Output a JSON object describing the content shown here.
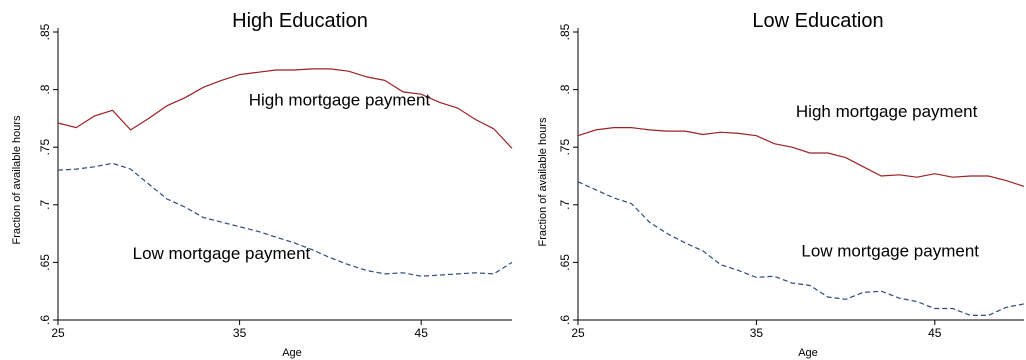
{
  "chart_data": [
    {
      "type": "line",
      "title": "High Education",
      "xlabel": "Age",
      "ylabel": "Fraction of available hours",
      "xlim": [
        25,
        50
      ],
      "ylim": [
        0.6,
        0.85
      ],
      "xticks": [
        "25",
        "35",
        "45"
      ],
      "yticks": [
        ".6",
        ".65",
        ".7",
        ".75",
        ".8",
        ".85"
      ],
      "grid": false,
      "series": [
        {
          "name": "High mortgage payment",
          "color": "#9b2226",
          "dash": "solid",
          "x": [
            25,
            26,
            27,
            28,
            29,
            30,
            31,
            32,
            33,
            34,
            35,
            36,
            37,
            38,
            39,
            40,
            41,
            42,
            43,
            44,
            45,
            46,
            47,
            48,
            49,
            50
          ],
          "values": [
            0.771,
            0.767,
            0.777,
            0.782,
            0.765,
            0.775,
            0.786,
            0.793,
            0.802,
            0.808,
            0.813,
            0.815,
            0.817,
            0.817,
            0.818,
            0.818,
            0.816,
            0.811,
            0.808,
            0.798,
            0.796,
            0.789,
            0.784,
            0.774,
            0.766,
            0.749
          ]
        },
        {
          "name": "Low mortgage payment",
          "color": "#2b4c7e",
          "dash": "dashed",
          "x": [
            25,
            26,
            27,
            28,
            29,
            30,
            31,
            32,
            33,
            34,
            35,
            36,
            37,
            38,
            39,
            40,
            41,
            42,
            43,
            44,
            45,
            46,
            47,
            48,
            49,
            50
          ],
          "values": [
            0.73,
            0.731,
            0.733,
            0.736,
            0.731,
            0.718,
            0.705,
            0.698,
            0.689,
            0.685,
            0.681,
            0.677,
            0.672,
            0.667,
            0.661,
            0.654,
            0.648,
            0.643,
            0.64,
            0.641,
            0.638,
            0.639,
            0.64,
            0.641,
            0.64,
            0.65
          ]
        }
      ],
      "annotations": [
        {
          "text": "High mortgage payment",
          "x": 40.5,
          "y": 0.786
        },
        {
          "text": "Low mortgage payment",
          "x": 34,
          "y": 0.653
        }
      ]
    },
    {
      "type": "line",
      "title": "Low Education",
      "xlabel": "Age",
      "ylabel": "Fraction of available hours",
      "xlim": [
        25,
        50
      ],
      "ylim": [
        0.6,
        0.85
      ],
      "xticks": [
        "25",
        "35",
        "45"
      ],
      "yticks": [
        ".6",
        ".65",
        ".7",
        ".75",
        ".8",
        ".85"
      ],
      "grid": false,
      "series": [
        {
          "name": "High mortgage payment",
          "color": "#9b2226",
          "dash": "solid",
          "x": [
            25,
            26,
            27,
            28,
            29,
            30,
            31,
            32,
            33,
            34,
            35,
            36,
            37,
            38,
            39,
            40,
            41,
            42,
            43,
            44,
            45,
            46,
            47,
            48,
            49,
            50
          ],
          "values": [
            0.76,
            0.765,
            0.767,
            0.767,
            0.765,
            0.764,
            0.764,
            0.761,
            0.763,
            0.762,
            0.76,
            0.753,
            0.75,
            0.745,
            0.745,
            0.741,
            0.733,
            0.725,
            0.726,
            0.724,
            0.727,
            0.724,
            0.725,
            0.725,
            0.721,
            0.716
          ]
        },
        {
          "name": "Low mortgage payment",
          "color": "#2b4c7e",
          "dash": "dashed",
          "x": [
            25,
            26,
            27,
            28,
            29,
            30,
            31,
            32,
            33,
            34,
            35,
            36,
            37,
            38,
            39,
            40,
            41,
            42,
            43,
            44,
            45,
            46,
            47,
            48,
            49,
            50
          ],
          "values": [
            0.72,
            0.713,
            0.706,
            0.701,
            0.685,
            0.675,
            0.667,
            0.66,
            0.648,
            0.643,
            0.637,
            0.638,
            0.632,
            0.63,
            0.62,
            0.618,
            0.624,
            0.625,
            0.619,
            0.616,
            0.61,
            0.61,
            0.604,
            0.604,
            0.611,
            0.614
          ]
        }
      ],
      "annotations": [
        {
          "text": "High mortgage payment",
          "x": 42.3,
          "y": 0.776
        },
        {
          "text": "Low mortgage payment",
          "x": 42.5,
          "y": 0.655
        }
      ]
    }
  ]
}
